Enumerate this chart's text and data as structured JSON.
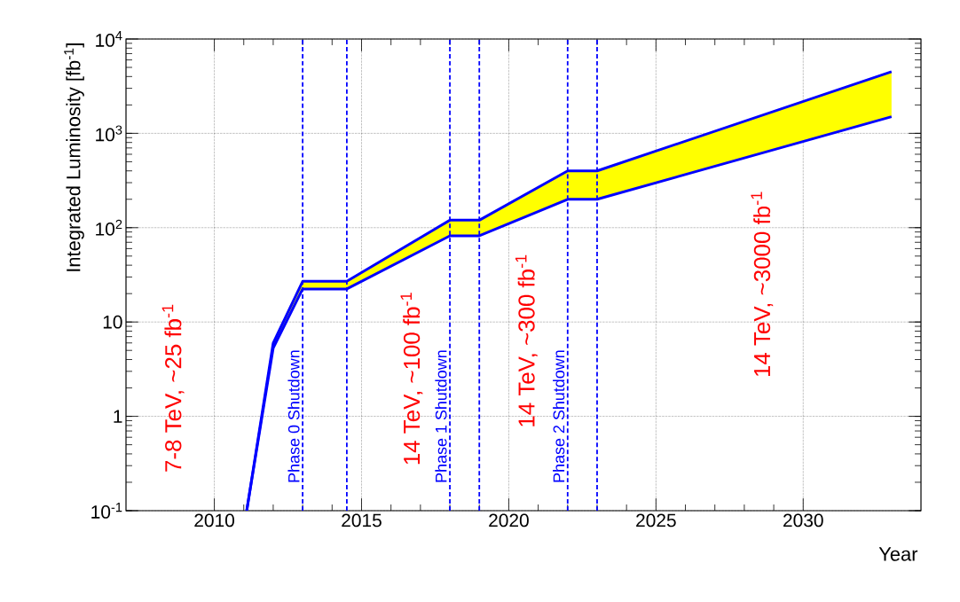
{
  "chart_data": {
    "type": "line",
    "xlabel": "Year",
    "ylabel": "Integrated Luminosity [fb$^{-1}$]",
    "xlim": [
      2007,
      2034
    ],
    "xticks": [
      2010,
      2015,
      2020,
      2025,
      2030
    ],
    "ylim": [
      0.1,
      10000
    ],
    "yticks": [
      {
        "value": 0.1,
        "label": "10$^{-1}$"
      },
      1,
      10,
      {
        "value": 100,
        "label": "10$^{2}$"
      },
      {
        "value": 1000,
        "label": "10$^{3}$"
      },
      {
        "value": 10000,
        "label": "10$^{4}$"
      }
    ],
    "log": "y",
    "grid": true,
    "line_style": "solid",
    "series": [
      {
        "type": "area",
        "color": "#ffff00",
        "x": [
          2011.1,
          2012,
          2013,
          2014.5,
          2018,
          2019,
          2022,
          2023,
          2033
        ],
        "values": [
          0.1,
          6,
          27,
          27,
          120,
          120,
          400,
          400,
          4500
        ]
      },
      {
        "color": "#0000ff",
        "x": [
          2011.1,
          2012,
          2013,
          2014.5,
          2018,
          2019,
          2022,
          2023,
          2033
        ],
        "values": [
          0.1,
          5.3,
          22.4,
          22.4,
          82,
          82,
          200,
          200,
          1500
        ]
      }
    ],
    "ref_lines": [
      {
        "axis": "x",
        "value": 2013,
        "label": "Phase 0 Shutdown",
        "color": "#0000ff",
        "line_style": "dashed"
      },
      {
        "axis": "x",
        "value": 2014.5,
        "color": "#0000ff",
        "line_style": "dashed"
      },
      {
        "axis": "x",
        "value": 2018,
        "label": "Phase 1 Shutdown",
        "color": "#0000ff",
        "line_style": "dashed"
      },
      {
        "axis": "x",
        "value": 2019,
        "color": "#0000ff",
        "line_style": "dashed"
      },
      {
        "axis": "x",
        "value": 2022,
        "label": "Phase 2 Shutdown",
        "color": "#0000ff",
        "line_style": "dashed"
      },
      {
        "axis": "x",
        "value": 2023,
        "color": "#0000ff",
        "line_style": "dashed"
      }
    ],
    "annotations": [
      "7-8 TeV, ~25 fb$^{-1}$",
      "14 TeV, ~100 fb$^{-1}$",
      "14 TeV, ~300 fb$^{-1}$",
      "14 TeV, ~3000 fb$^{-1}$"
    ]
  }
}
